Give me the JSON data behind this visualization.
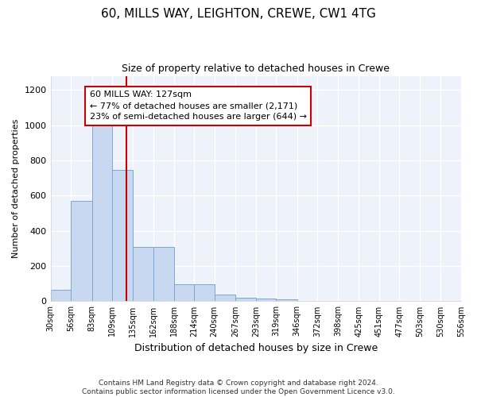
{
  "title": "60, MILLS WAY, LEIGHTON, CREWE, CW1 4TG",
  "subtitle": "Size of property relative to detached houses in Crewe",
  "xlabel": "Distribution of detached houses by size in Crewe",
  "ylabel": "Number of detached properties",
  "bar_color": "#c8d8f0",
  "bar_edge_color": "#7ba7d4",
  "background_color": "#eef2fb",
  "grid_color": "#ffffff",
  "annotation_box_color": "#ffffff",
  "annotation_box_edge": "#cc0000",
  "vline_color": "#cc0000",
  "vline_x": 127,
  "annotation_text": "60 MILLS WAY: 127sqm\n← 77% of detached houses are smaller (2,171)\n23% of semi-detached houses are larger (644) →",
  "footer": "Contains HM Land Registry data © Crown copyright and database right 2024.\nContains public sector information licensed under the Open Government Licence v3.0.",
  "bin_edges": [
    30,
    56,
    83,
    109,
    135,
    162,
    188,
    214,
    240,
    267,
    293,
    319,
    346,
    372,
    398,
    425,
    451,
    477,
    503,
    530,
    556
  ],
  "bar_heights": [
    65,
    570,
    1000,
    745,
    310,
    310,
    95,
    95,
    38,
    20,
    15,
    10,
    0,
    0,
    0,
    0,
    0,
    0,
    0,
    0
  ],
  "ylim": [
    0,
    1280
  ],
  "yticks": [
    0,
    200,
    400,
    600,
    800,
    1000,
    1200
  ]
}
